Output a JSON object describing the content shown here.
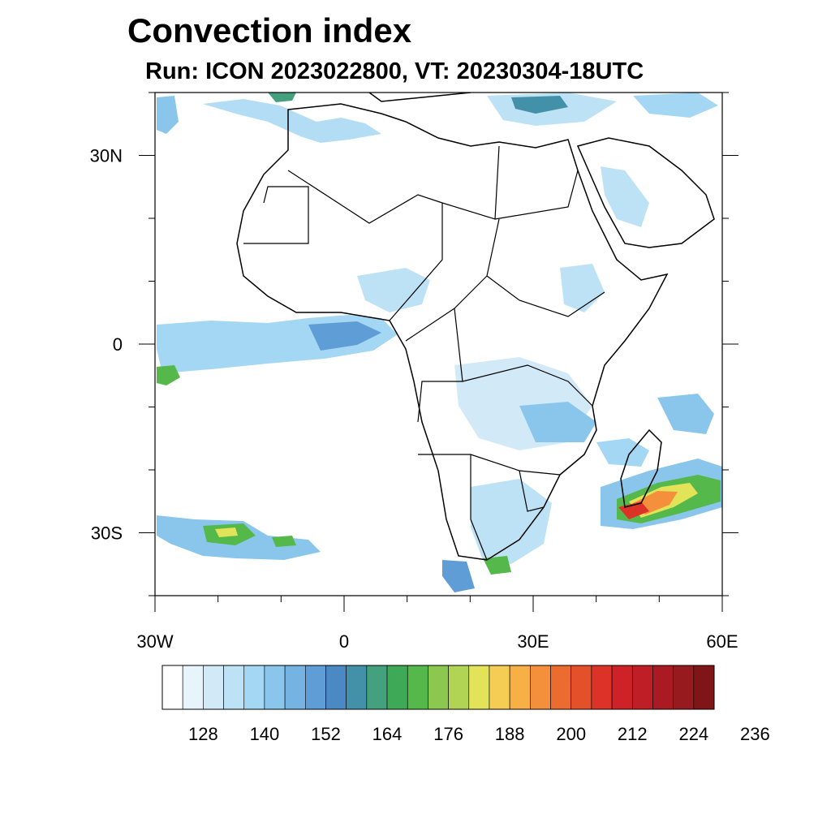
{
  "title": "Convection index",
  "subtitle": "Run: ICON 2023022800,  VT: 20230304-18UTC",
  "map": {
    "region": "Africa",
    "lon_range": [
      -30,
      60
    ],
    "lat_range": [
      -40,
      40
    ],
    "lat_ticks": [
      {
        "value": 30,
        "label": "30N"
      },
      {
        "value": 0,
        "label": "0"
      },
      {
        "value": -30,
        "label": "30S"
      }
    ],
    "lon_ticks": [
      {
        "value": -30,
        "label": "30W"
      },
      {
        "value": 0,
        "label": "0"
      },
      {
        "value": 30,
        "label": "30E"
      },
      {
        "value": 60,
        "label": "60E"
      }
    ]
  },
  "colorbar": {
    "colors": [
      "#ffffff",
      "#e8f4fb",
      "#d2eaf7",
      "#bde2f5",
      "#a4d7f3",
      "#8ac6ec",
      "#75b3e2",
      "#5f9dd6",
      "#4b89c4",
      "#4391a8",
      "#45a07e",
      "#3ea956",
      "#55b84a",
      "#8cc850",
      "#b2d454",
      "#e2e358",
      "#f5cd55",
      "#f6b045",
      "#f4903b",
      "#ec6c30",
      "#e4502a",
      "#dc3228",
      "#cf2128",
      "#c01e26",
      "#ab1a22",
      "#971b1e",
      "#7f1517"
    ],
    "labels": [
      "128",
      "140",
      "152",
      "164",
      "176",
      "188",
      "200",
      "212",
      "224",
      "236"
    ]
  }
}
